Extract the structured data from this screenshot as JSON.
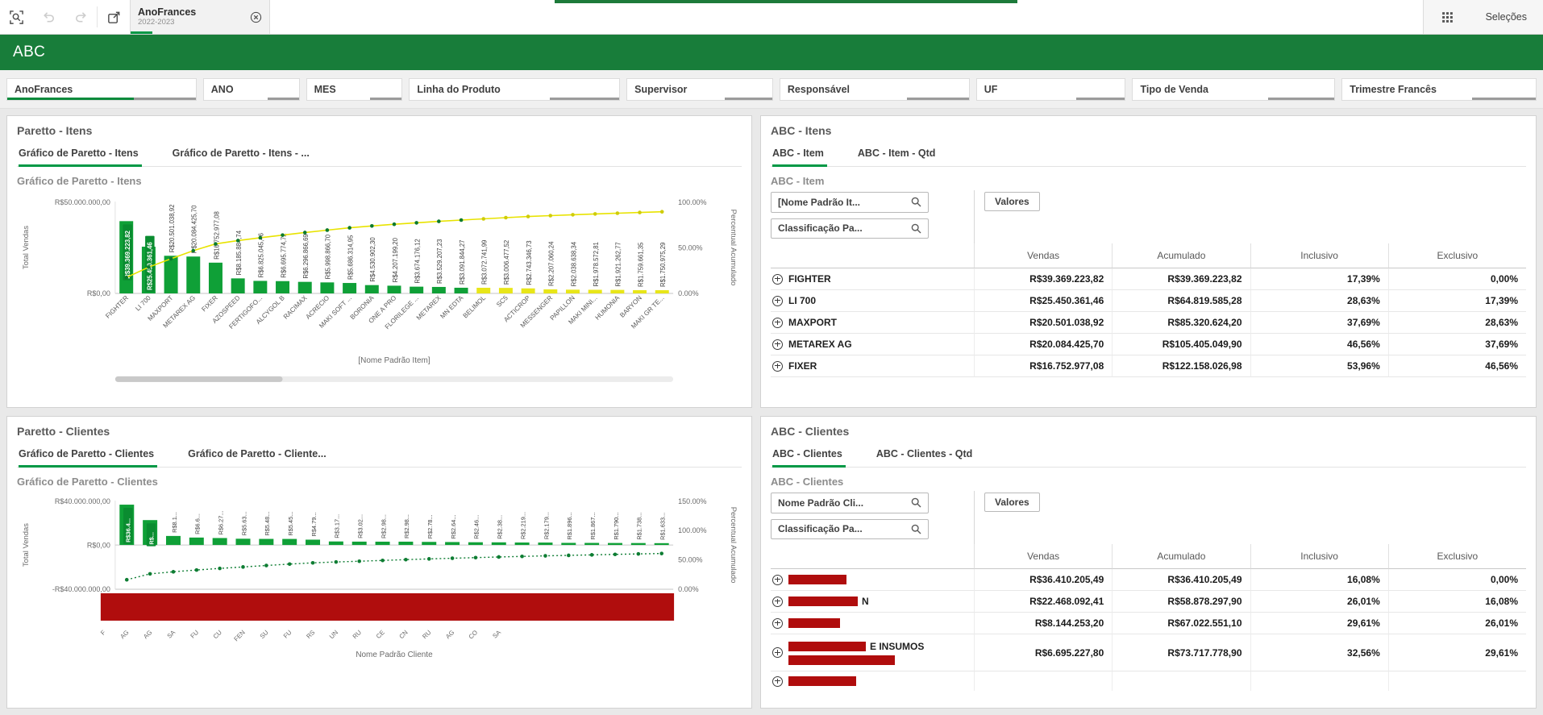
{
  "toolbar": {
    "tab": {
      "title": "AnoFrances",
      "subtitle": "2022-2023"
    },
    "selections_label": "Seleções"
  },
  "header": {
    "title": "ABC",
    "color": "#187d3a"
  },
  "filter_bar": {
    "items": [
      {
        "label": "AnoFrances",
        "selected": true
      },
      {
        "label": "ANO"
      },
      {
        "label": "MES"
      },
      {
        "label": "Linha do Produto"
      },
      {
        "label": "Supervisor"
      },
      {
        "label": "Responsável"
      },
      {
        "label": "UF"
      },
      {
        "label": "Tipo de Venda"
      },
      {
        "label": "Trimestre Francês"
      }
    ]
  },
  "pareto_itens": {
    "title": "Paretto - Itens",
    "tabs": [
      {
        "label": "Gráfico de Paretto - Itens",
        "active": true
      },
      {
        "label": "Gráfico de Paretto - Itens - ...",
        "active": false
      }
    ],
    "chart_title": "Gráfico de Paretto - Itens"
  },
  "abc_itens": {
    "title": "ABC - Itens",
    "tabs": [
      {
        "label": "ABC - Item",
        "active": true
      },
      {
        "label": "ABC - Item - Qtd",
        "active": false
      }
    ],
    "subtitle": "ABC - Item",
    "search_fields": [
      "[Nome Padrão It...",
      "Classificação Pa..."
    ],
    "values_label": "Valores",
    "columns": [
      "Vendas",
      "Acumulado",
      "Inclusivo",
      "Exclusivo"
    ],
    "rows": [
      {
        "name": "FIGHTER",
        "vendas": "R$39.369.223,82",
        "acumulado": "R$39.369.223,82",
        "inclusivo": "17,39%",
        "exclusivo": "0,00%"
      },
      {
        "name": "LI 700",
        "vendas": "R$25.450.361,46",
        "acumulado": "R$64.819.585,28",
        "inclusivo": "28,63%",
        "exclusivo": "17,39%"
      },
      {
        "name": "MAXPORT",
        "vendas": "R$20.501.038,92",
        "acumulado": "R$85.320.624,20",
        "inclusivo": "37,69%",
        "exclusivo": "28,63%"
      },
      {
        "name": "METAREX AG",
        "vendas": "R$20.084.425,70",
        "acumulado": "R$105.405.049,90",
        "inclusivo": "46,56%",
        "exclusivo": "37,69%"
      },
      {
        "name": "FIXER",
        "vendas": "R$16.752.977,08",
        "acumulado": "R$122.158.026,98",
        "inclusivo": "53,96%",
        "exclusivo": "46,56%"
      }
    ]
  },
  "pareto_clientes": {
    "title": "Paretto - Clientes",
    "tabs": [
      {
        "label": "Gráfico de Paretto - Clientes",
        "active": true
      },
      {
        "label": "Gráfico de Paretto - Cliente...",
        "active": false
      }
    ],
    "chart_title": "Gráfico de Paretto - Clientes"
  },
  "abc_clientes": {
    "title": "ABC - Clientes",
    "tabs": [
      {
        "label": "ABC - Clientes",
        "active": true
      },
      {
        "label": "ABC - Clientes - Qtd",
        "active": false
      }
    ],
    "subtitle": "ABC - Clientes",
    "search_fields": [
      "Nome Padrão Cli...",
      "Classificação Pa..."
    ],
    "values_label": "Valores",
    "columns": [
      "Vendas",
      "Acumulado",
      "Inclusivo",
      "Exclusivo"
    ],
    "rows": [
      {
        "redacted": true,
        "suffix": "",
        "vendas": "R$36.410.205,49",
        "acumulado": "R$36.410.205,49",
        "inclusivo": "16,08%",
        "exclusivo": "0,00%"
      },
      {
        "redacted": true,
        "suffix": "N",
        "vendas": "R$22.468.092,41",
        "acumulado": "R$58.878.297,90",
        "inclusivo": "26,01%",
        "exclusivo": "16,08%"
      },
      {
        "redacted": true,
        "suffix": "",
        "vendas": "R$8.144.253,20",
        "acumulado": "R$67.022.551,10",
        "inclusivo": "29,61%",
        "exclusivo": "26,01%"
      },
      {
        "redacted": true,
        "suffix": "E INSUMOS",
        "second_redaction": true,
        "vendas": "R$6.695.227,80",
        "acumulado": "R$73.717.778,90",
        "inclusivo": "32,56%",
        "exclusivo": "29,61%"
      },
      {
        "redacted": true,
        "suffix": "",
        "partial": true,
        "vendas": "",
        "acumulado": "",
        "inclusivo": "",
        "exclusivo": ""
      }
    ]
  },
  "chart_data": [
    {
      "id": "pareto-itens",
      "type": "bar",
      "overlay": "cumulative-line",
      "title": "Gráfico de Paretto - Itens",
      "xlabel": "[Nome Padrão Item]",
      "ylabel_left": "Total Vendas",
      "ylabel_right": "Percentual Acumulado",
      "ylim_left": [
        0,
        50000000
      ],
      "ylim_right": [
        0,
        100
      ],
      "y_ticks_left": [
        "R$50.000.000,00",
        "R$0,00"
      ],
      "y_ticks_right": [
        "100.00%",
        "50.00%",
        "0.00%"
      ],
      "categories": [
        "FIGHTER",
        "LI 700",
        "MAXPORT",
        "METAREX AG",
        "FIXER",
        "AZOSPEED",
        "FERTIGOFO...",
        "ALCYGOL B",
        "RACIMAX",
        "ACRECIO",
        "MAKI SOFT ...",
        "BORONIA",
        "ONE A PRO",
        "FLORILEGE ...",
        "METAREX",
        "MN EDTA",
        "BELIMOL",
        "SC5",
        "ACTICROP",
        "MESSENGER",
        "PAPILLON",
        "MAKI MINI...",
        "HUMONIA",
        "BARYON",
        "MAKI GR TE..."
      ],
      "values": [
        39369223.82,
        25450361.46,
        20501038.92,
        20084425.7,
        16752977.08,
        8185884.74,
        6825045.46,
        6695774.72,
        6296866.69,
        5998866.7,
        5686314.95,
        4530902.3,
        4207199.2,
        3674176.12,
        3529207.23,
        3091844.27,
        3072741.99,
        3006477.52,
        2743346.73,
        2207060.24,
        2038638.34,
        1978572.81,
        1921262.77,
        1759661.35,
        1750975.29
      ],
      "value_labels": [
        "R$39.369.223,82",
        "R$25.450.361,46",
        "R$20.501.038,92",
        "R$20.084.425,70",
        "R$16.752.977,08",
        "R$8.185.884,74",
        "R$6.825.045,46",
        "R$6.695.774,72",
        "R$6.296.866,69",
        "R$5.998.866,70",
        "R$5.686.314,95",
        "R$4.530.902,30",
        "R$4.207.199,20",
        "R$3.674.176,12",
        "R$3.529.207,23",
        "R$3.091.844,27",
        "R$3.072.741,99",
        "R$3.006.477,52",
        "R$2.743.346,73",
        "R$2.207.060,24",
        "R$2.038.638,34",
        "R$1.978.572,81",
        "R$1.921.262,77",
        "R$1.759.661,35",
        "R$1.750.975,29"
      ],
      "cumulative_pct": [
        17.39,
        28.63,
        37.69,
        46.56,
        53.96,
        57.57,
        60.59,
        63.55,
        66.33,
        68.98,
        71.49,
        73.49,
        75.35,
        76.97,
        78.53,
        79.9,
        81.25,
        82.58,
        83.8,
        84.77,
        85.67,
        86.55,
        87.4,
        88.17,
        88.95
      ],
      "a_class_count": 16,
      "highlighted_labels": [
        0,
        1
      ],
      "colors": {
        "bar_a": "#0fa037",
        "bar_b": "#e8e619",
        "line": "#e8e300",
        "dot_a": "#0c7a2d",
        "dot_b": "#cfcc08",
        "highlight_bg": "#0a8c30"
      }
    },
    {
      "id": "pareto-clientes",
      "type": "bar",
      "overlay": "cumulative-line",
      "title": "Gráfico de Paretto - Clientes",
      "xlabel": "Nome Padrão Cliente",
      "ylabel_left": "Total Vendas",
      "ylabel_right": "Percentual Acumulado",
      "ylim_left": [
        -40000000,
        40000000
      ],
      "ylim_right": [
        0,
        150
      ],
      "y_ticks_left": [
        "R$40.000.000,00",
        "R$0,00",
        "-R$40.000.000,00"
      ],
      "y_ticks_right": [
        "150.00%",
        "100.00%",
        "50.00%",
        "0.00%"
      ],
      "categories_redacted": true,
      "category_fragments": [
        "F",
        "AG",
        "AG",
        "SA",
        "FU",
        "CU",
        "FEN",
        "SU",
        "FU",
        "RS",
        "UN",
        "RU",
        "CE",
        "CN",
        "RU",
        "AG",
        "CO",
        "SA",
        "",
        "",
        "",
        "",
        "",
        ""
      ],
      "values": [
        36410205.49,
        22468092.41,
        8144253.2,
        6695227.8,
        6270000,
        5630000,
        5480000,
        5450000,
        4790000,
        3170000,
        3020000,
        2980000,
        2980000,
        2780000,
        2640000,
        2460000,
        2380000,
        2219000,
        2179000,
        1896000,
        1867000,
        1790000,
        1738000,
        1633000
      ],
      "value_labels": [
        "R$36.4...",
        "R$...",
        "R$8.1...",
        "R$6.6...",
        "R$6.27...",
        "R$5.63...",
        "R$5.48...",
        "R$5.45...",
        "R$4.79...",
        "R$3.17...",
        "R$3.02...",
        "R$2.98...",
        "R$2.98...",
        "R$2.78...",
        "R$2.64...",
        "R$2.46...",
        "R$2.38...",
        "R$2.219...",
        "R$2.179...",
        "R$1.896...",
        "R$1.867...",
        "R$1.790...",
        "R$1.738...",
        "R$1.633..."
      ],
      "cumulative_pct": [
        16.08,
        26.01,
        29.61,
        32.56,
        35.33,
        37.81,
        40.23,
        42.64,
        44.76,
        46.16,
        47.49,
        48.81,
        50.12,
        51.35,
        52.52,
        53.6,
        54.65,
        55.63,
        56.6,
        57.43,
        58.26,
        59.05,
        59.82,
        60.54
      ],
      "highlighted_labels": [
        0,
        1
      ],
      "colors": {
        "bar_a": "#0fa037",
        "line": "#0e7d33",
        "highlight_bg": "#0a8c30",
        "redaction": "#b00d0d"
      }
    }
  ]
}
